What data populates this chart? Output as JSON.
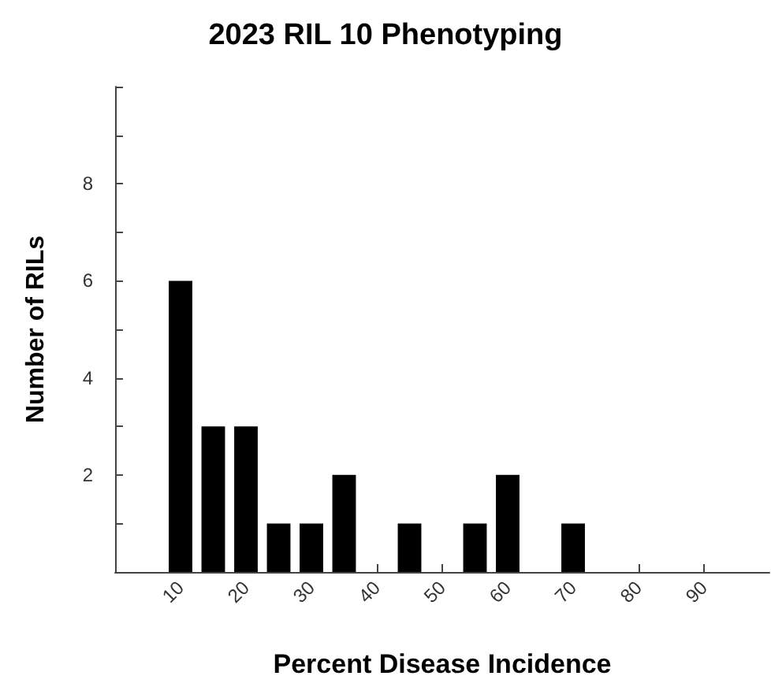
{
  "chart_data": {
    "type": "bar",
    "title": "2023 RIL 10 Phenotyping",
    "xlabel": "Percent Disease Incidence",
    "ylabel": "Number of RILs",
    "x": [
      10,
      15,
      20,
      25,
      30,
      35,
      45,
      55,
      60,
      70
    ],
    "values": [
      6,
      3,
      3,
      1,
      1,
      2,
      1,
      1,
      2,
      1
    ],
    "color": "#000000",
    "xlim": [
      0,
      100
    ],
    "xticks": [
      10,
      20,
      30,
      40,
      50,
      60,
      70,
      80,
      90
    ],
    "ylim": [
      0,
      10
    ],
    "yticks": [
      {
        "value": 0,
        "label": null
      },
      {
        "value": 1,
        "label": null
      },
      2,
      {
        "value": 3,
        "label": null
      },
      4,
      {
        "value": 5,
        "label": null
      },
      6,
      {
        "value": 7,
        "label": null
      },
      8,
      {
        "value": 9,
        "label": null
      },
      {
        "value": 10,
        "label": null
      }
    ],
    "grid": false
  }
}
